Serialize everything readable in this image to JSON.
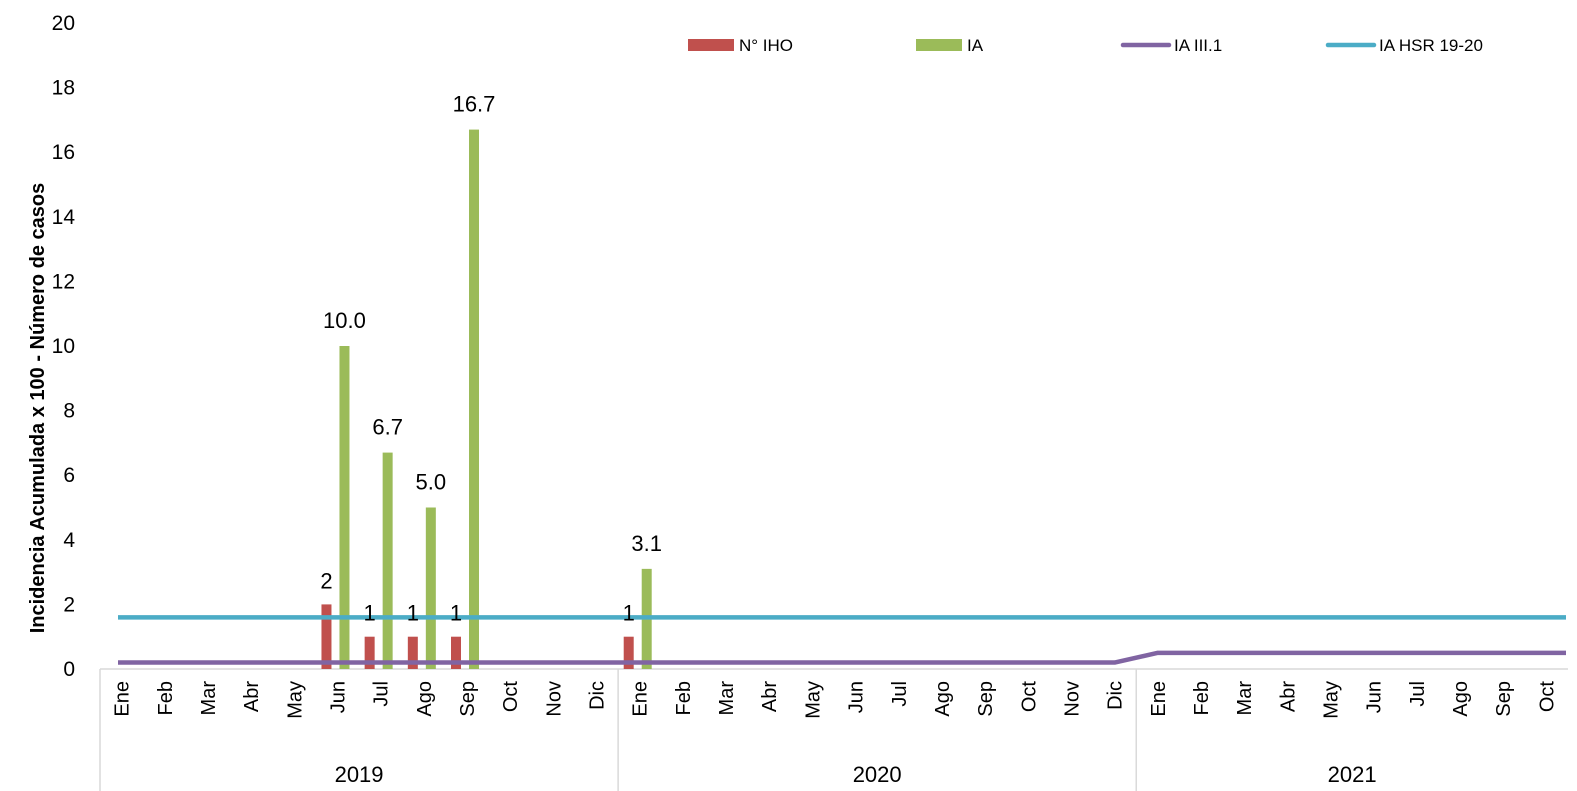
{
  "chart_data": {
    "type": "bar",
    "ylabel": "Incidencia Acumulada x 100  - Número de casos",
    "ylim": [
      0,
      20
    ],
    "yticks": [
      "0",
      "2",
      "4",
      "6",
      "8",
      "10",
      "12",
      "14",
      "16",
      "18",
      "20"
    ],
    "grid": false,
    "legend_position": "top-right",
    "years": [
      {
        "label": "2019",
        "span": 12
      },
      {
        "label": "2020",
        "span": 12
      },
      {
        "label": "2021",
        "span": 10
      }
    ],
    "categories": [
      "Ene",
      "Feb",
      "Mar",
      "Abr",
      "May",
      "Jun",
      "Jul",
      "Ago",
      "Sep",
      "Oct",
      "Nov",
      "Dic",
      "Ene",
      "Feb",
      "Mar",
      "Abr",
      "May",
      "Jun",
      "Jul",
      "Ago",
      "Sep",
      "Oct",
      "Nov",
      "Dic",
      "Ene",
      "Feb",
      "Mar",
      "Abr",
      "May",
      "Jun",
      "Jul",
      "Ago",
      "Sep",
      "Oct"
    ],
    "series": [
      {
        "name": "N° IHO",
        "type": "bar",
        "color": "#C0504D",
        "values": [
          null,
          null,
          null,
          null,
          null,
          2,
          1,
          1,
          1,
          null,
          null,
          null,
          1,
          null,
          null,
          null,
          null,
          null,
          null,
          null,
          null,
          null,
          null,
          null,
          null,
          null,
          null,
          null,
          null,
          null,
          null,
          null,
          null,
          null
        ],
        "labels": [
          "",
          "",
          "",
          "",
          "",
          "2",
          "1",
          "1",
          "1",
          "",
          "",
          "",
          "1",
          "",
          "",
          "",
          "",
          "",
          "",
          "",
          "",
          "",
          "",
          "",
          "",
          "",
          "",
          "",
          "",
          "",
          "",
          "",
          "",
          ""
        ]
      },
      {
        "name": "IA",
        "type": "bar",
        "color": "#9BBB59",
        "values": [
          null,
          null,
          null,
          null,
          null,
          10.0,
          6.7,
          5.0,
          16.7,
          null,
          null,
          null,
          3.1,
          null,
          null,
          null,
          null,
          null,
          null,
          null,
          null,
          null,
          null,
          null,
          null,
          null,
          null,
          null,
          null,
          null,
          null,
          null,
          null,
          null
        ],
        "labels": [
          "",
          "",
          "",
          "",
          "",
          "10.0",
          "6.7",
          "5.0",
          "16.7",
          "",
          "",
          "",
          "3.1",
          "",
          "",
          "",
          "",
          "",
          "",
          "",
          "",
          "",
          "",
          "",
          "",
          "",
          "",
          "",
          "",
          "",
          "",
          "",
          "",
          ""
        ]
      },
      {
        "name": "IA  III.1",
        "type": "line",
        "color": "#8064A2",
        "values": [
          0.2,
          0.2,
          0.2,
          0.2,
          0.2,
          0.2,
          0.2,
          0.2,
          0.2,
          0.2,
          0.2,
          0.2,
          0.2,
          0.2,
          0.2,
          0.2,
          0.2,
          0.2,
          0.2,
          0.2,
          0.2,
          0.2,
          0.2,
          0.2,
          0.5,
          0.5,
          0.5,
          0.5,
          0.5,
          0.5,
          0.5,
          0.5,
          0.5,
          0.5
        ]
      },
      {
        "name": "IA  HSR 19-20",
        "type": "line",
        "color": "#4BACC6",
        "values": [
          1.6,
          1.6,
          1.6,
          1.6,
          1.6,
          1.6,
          1.6,
          1.6,
          1.6,
          1.6,
          1.6,
          1.6,
          1.6,
          1.6,
          1.6,
          1.6,
          1.6,
          1.6,
          1.6,
          1.6,
          1.6,
          1.6,
          1.6,
          1.6,
          1.6,
          1.6,
          1.6,
          1.6,
          1.6,
          1.6,
          1.6,
          1.6,
          1.6,
          1.6
        ]
      }
    ]
  }
}
